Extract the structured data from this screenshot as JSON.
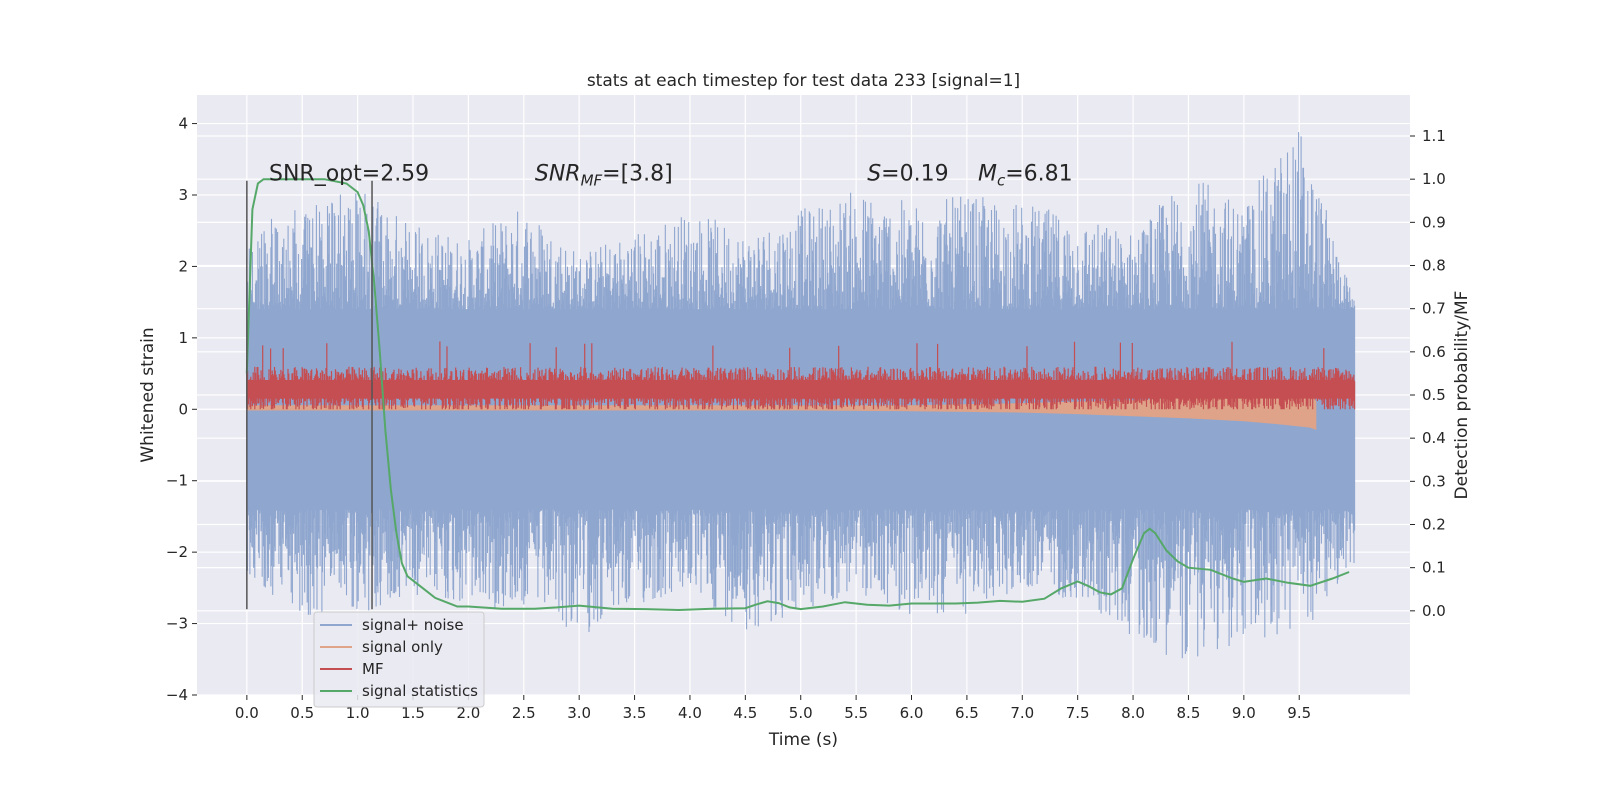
{
  "chart_data": {
    "type": "line",
    "title": "stats at each timestep for test data 233 [signal=1]",
    "xlabel": "Time (s)",
    "ylabel": "Whitened strain",
    "y2label": "Detection probability/MF",
    "xlim": [
      -0.45,
      10.5
    ],
    "ylim": [
      -4.0,
      4.4
    ],
    "y2lim": [
      -0.195,
      1.195
    ],
    "x_ticks": [
      0.0,
      0.5,
      1.0,
      1.5,
      2.0,
      2.5,
      3.0,
      3.5,
      4.0,
      4.5,
      5.0,
      5.5,
      6.0,
      6.5,
      7.0,
      7.5,
      8.0,
      8.5,
      9.0,
      9.5
    ],
    "x_tick_labels": [
      "0.0",
      "0.5",
      "1.0",
      "1.5",
      "2.0",
      "2.5",
      "3.0",
      "3.5",
      "4.0",
      "4.5",
      "5.0",
      "5.5",
      "6.0",
      "6.5",
      "7.0",
      "7.5",
      "8.0",
      "8.5",
      "9.0",
      "9.5"
    ],
    "y_ticks": [
      4,
      3,
      2,
      1,
      0,
      -1,
      -2,
      -3,
      -4
    ],
    "y_tick_labels": [
      "4",
      "3",
      "2",
      "1",
      "0",
      "−1",
      "−2",
      "−3",
      "−4"
    ],
    "y2_ticks": [
      1.1,
      1.0,
      0.9,
      0.8,
      0.7,
      0.6,
      0.5,
      0.4,
      0.3,
      0.2,
      0.1,
      0.0
    ],
    "y2_tick_labels": [
      "1.1",
      "1.0",
      "0.9",
      "0.8",
      "0.7",
      "0.6",
      "0.5",
      "0.4",
      "0.3",
      "0.2",
      "0.1",
      "0.0"
    ],
    "grid": true,
    "legend_position": "lower-left",
    "vertical_lines": [
      {
        "x": 0.0,
        "y_range": [
          -2.8,
          3.2
        ]
      },
      {
        "x": 1.13,
        "y_range": [
          -2.8,
          3.2
        ]
      }
    ],
    "annotations": [
      {
        "text": "SNR_opt=2.59",
        "x": 0.2,
        "y": 3.2
      },
      {
        "text": "SNR_MF=[3.8]",
        "x": 2.6,
        "y": 3.2
      },
      {
        "text": "S=0.19",
        "x": 5.6,
        "y": 3.2
      },
      {
        "text": "M_c=6.81",
        "x": 6.6,
        "y": 3.2
      }
    ],
    "series": [
      {
        "name": "signal+ noise",
        "axis": "left",
        "color": "#8fa6cf",
        "x_start": 0.0,
        "x_end": 10.0,
        "envelope_points_x": [
          0.0,
          0.5,
          1.0,
          1.5,
          2.0,
          2.5,
          3.0,
          3.5,
          4.0,
          4.5,
          5.0,
          5.5,
          6.0,
          6.5,
          7.0,
          7.5,
          8.0,
          8.5,
          9.0,
          9.5,
          10.0
        ],
        "envelope_upper": [
          2.6,
          2.9,
          3.1,
          2.6,
          2.4,
          2.9,
          2.2,
          2.5,
          2.8,
          2.5,
          2.8,
          3.1,
          2.9,
          3.0,
          2.9,
          2.7,
          2.5,
          3.3,
          2.9,
          4.05,
          1.5
        ],
        "envelope_lower": [
          -2.5,
          -2.9,
          -2.9,
          -2.6,
          -2.8,
          -2.8,
          -3.2,
          -2.8,
          -2.6,
          -3.1,
          -2.9,
          -2.6,
          -2.9,
          -2.9,
          -2.5,
          -2.7,
          -3.2,
          -3.6,
          -3.3,
          -3.2,
          -2.2
        ],
        "core_band": [
          -1.4,
          1.4
        ]
      },
      {
        "name": "signal only",
        "axis": "left",
        "color": "#dea388",
        "x": [
          0.0,
          1.0,
          2.0,
          3.0,
          4.0,
          5.0,
          6.0,
          7.0,
          7.5,
          8.0,
          8.5,
          9.0,
          9.3,
          9.6,
          9.65
        ],
        "upper": [
          0.05,
          0.05,
          0.05,
          0.05,
          0.05,
          0.05,
          0.05,
          0.08,
          0.1,
          0.12,
          0.16,
          0.2,
          0.24,
          0.26,
          0.1
        ],
        "lower": [
          -0.01,
          -0.01,
          -0.01,
          -0.01,
          -0.01,
          -0.01,
          -0.02,
          -0.04,
          -0.06,
          -0.09,
          -0.12,
          -0.16,
          -0.2,
          -0.25,
          -0.28
        ]
      },
      {
        "name": "MF",
        "axis": "left",
        "color": "#c44e52",
        "x_start": 0.0,
        "x_end": 10.0,
        "center": 0.28,
        "spread": 0.32,
        "max": 0.95,
        "min": 0.0
      },
      {
        "name": "signal statistics",
        "axis": "right",
        "color": "#55a868",
        "x": [
          0.0,
          0.05,
          0.1,
          0.15,
          0.2,
          0.3,
          0.5,
          0.7,
          0.9,
          1.0,
          1.05,
          1.1,
          1.15,
          1.2,
          1.25,
          1.3,
          1.35,
          1.4,
          1.45,
          1.5,
          1.6,
          1.7,
          1.8,
          1.9,
          2.0,
          2.3,
          2.6,
          2.8,
          3.0,
          3.3,
          3.6,
          3.9,
          4.2,
          4.5,
          4.6,
          4.7,
          4.8,
          4.9,
          5.0,
          5.2,
          5.4,
          5.6,
          5.8,
          6.0,
          6.2,
          6.4,
          6.6,
          6.8,
          7.0,
          7.2,
          7.35,
          7.5,
          7.6,
          7.7,
          7.8,
          7.9,
          8.0,
          8.1,
          8.15,
          8.2,
          8.3,
          8.4,
          8.5,
          8.7,
          8.9,
          9.0,
          9.2,
          9.4,
          9.6,
          9.8,
          9.95
        ],
        "y": [
          0.55,
          0.93,
          0.99,
          1.0,
          1.0,
          1.0,
          1.0,
          1.0,
          0.99,
          0.97,
          0.94,
          0.88,
          0.76,
          0.6,
          0.42,
          0.28,
          0.18,
          0.11,
          0.08,
          0.07,
          0.05,
          0.03,
          0.02,
          0.01,
          0.01,
          0.005,
          0.005,
          0.008,
          0.012,
          0.005,
          0.004,
          0.002,
          0.005,
          0.006,
          0.015,
          0.022,
          0.018,
          0.008,
          0.004,
          0.01,
          0.02,
          0.014,
          0.012,
          0.017,
          0.017,
          0.017,
          0.019,
          0.023,
          0.021,
          0.028,
          0.052,
          0.068,
          0.057,
          0.043,
          0.038,
          0.052,
          0.12,
          0.18,
          0.19,
          0.18,
          0.14,
          0.115,
          0.1,
          0.095,
          0.075,
          0.067,
          0.075,
          0.065,
          0.058,
          0.075,
          0.09
        ]
      }
    ]
  }
}
